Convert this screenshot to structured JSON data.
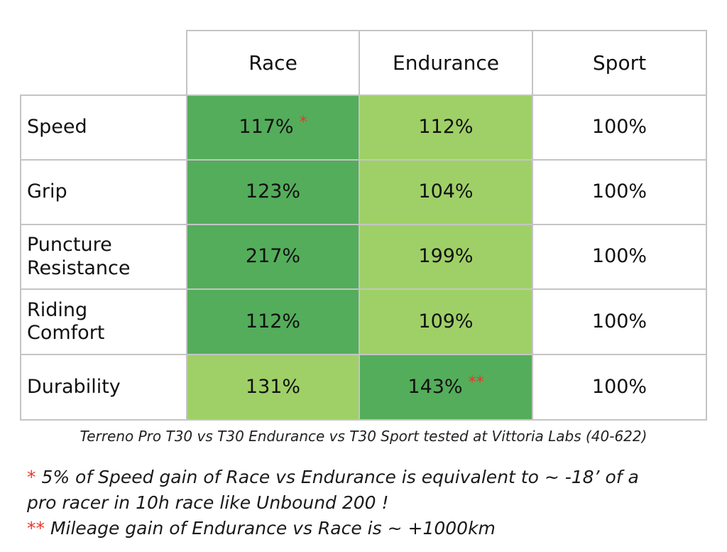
{
  "table": {
    "columns": [
      "Race",
      "Endurance",
      "Sport"
    ],
    "rows": [
      {
        "label": "Speed",
        "values": [
          "117%",
          "112%",
          "100%"
        ],
        "shade": [
          "dark",
          "light",
          "plain"
        ],
        "marks": [
          "*",
          "",
          ""
        ]
      },
      {
        "label": "Grip",
        "values": [
          "123%",
          "104%",
          "100%"
        ],
        "shade": [
          "dark",
          "light",
          "plain"
        ],
        "marks": [
          "",
          "",
          ""
        ]
      },
      {
        "label": "Puncture Resistance",
        "values": [
          "217%",
          "199%",
          "100%"
        ],
        "shade": [
          "dark",
          "light",
          "plain"
        ],
        "marks": [
          "",
          "",
          ""
        ]
      },
      {
        "label": "Riding Comfort",
        "values": [
          "112%",
          "109%",
          "100%"
        ],
        "shade": [
          "dark",
          "light",
          "plain"
        ],
        "marks": [
          "",
          "",
          ""
        ]
      },
      {
        "label": "Durability",
        "values": [
          "131%",
          "143%",
          "100%"
        ],
        "shade": [
          "light",
          "dark",
          "plain"
        ],
        "marks": [
          "",
          "**",
          ""
        ]
      }
    ]
  },
  "caption": "Terreno Pro T30 vs T30 Endurance vs T30 Sport tested at Vittoria Labs (40-622)",
  "notes": {
    "note1_mark": "*",
    "note1_line1": "5% of Speed gain of Race vs Endurance is equivalent to ~ -18’ of a",
    "note1_line2": "pro racer in 10h race like Unbound 200 !",
    "note2_mark": "**",
    "note2_text": "Mileage gain of Endurance vs Race is ~ +1000km"
  },
  "colors": {
    "dark_green": "#54ad5b",
    "light_green": "#9fd067",
    "border": "#c4c4c4",
    "asterisk": "#e8372c"
  }
}
